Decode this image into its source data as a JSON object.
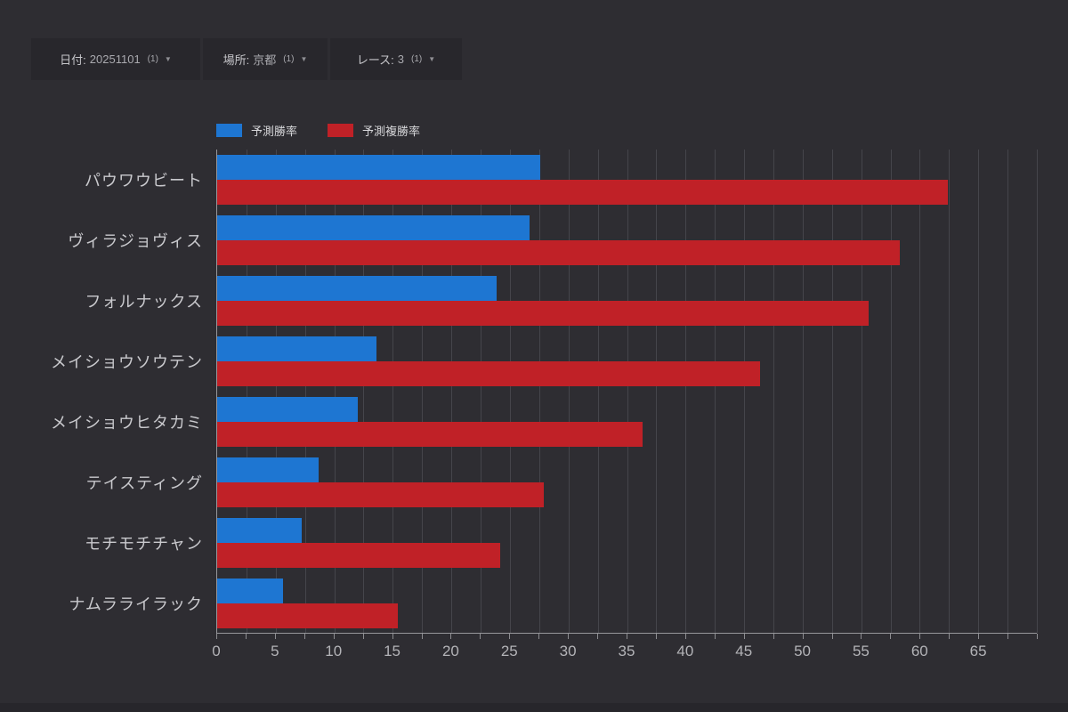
{
  "filters": {
    "date": {
      "label": "日付:",
      "value": "20251101",
      "count": "(1)",
      "caret": "▼"
    },
    "place": {
      "label": "場所:",
      "value": "京都",
      "count": "(1)",
      "caret": "▼"
    },
    "race": {
      "label": "レース:",
      "value": "3",
      "count": "(1)",
      "caret": "▼"
    }
  },
  "chart_data": {
    "type": "bar",
    "orientation": "horizontal",
    "title": "",
    "xlabel": "",
    "ylabel": "",
    "categories": [
      "パウワウビート",
      "ヴィラジョヴィス",
      "フォルナックス",
      "メイショウソウテン",
      "メイショウヒタカミ",
      "テイスティング",
      "モチモチチャン",
      "ナムラライラック"
    ],
    "series": [
      {
        "name": "予測勝率",
        "color": "#1e76d2",
        "values": [
          27.6,
          26.7,
          23.9,
          13.6,
          12.0,
          8.7,
          7.2,
          5.6
        ]
      },
      {
        "name": "予測複勝率",
        "color": "#c02127",
        "values": [
          62.4,
          58.3,
          55.6,
          46.4,
          36.3,
          27.9,
          24.2,
          15.4
        ]
      }
    ],
    "xlim": [
      0,
      70
    ],
    "x_ticks": [
      0,
      5,
      10,
      15,
      20,
      25,
      30,
      35,
      40,
      45,
      50,
      55,
      60,
      65
    ],
    "minor_step": 2.5,
    "grid": true,
    "legend_position": "top-left"
  },
  "colors": {
    "background": "#2e2d32",
    "panel": "#28272c",
    "gridline": "#45454b",
    "axis": "#97979b",
    "bar_blue": "#1e76d2",
    "bar_red": "#c02127"
  }
}
